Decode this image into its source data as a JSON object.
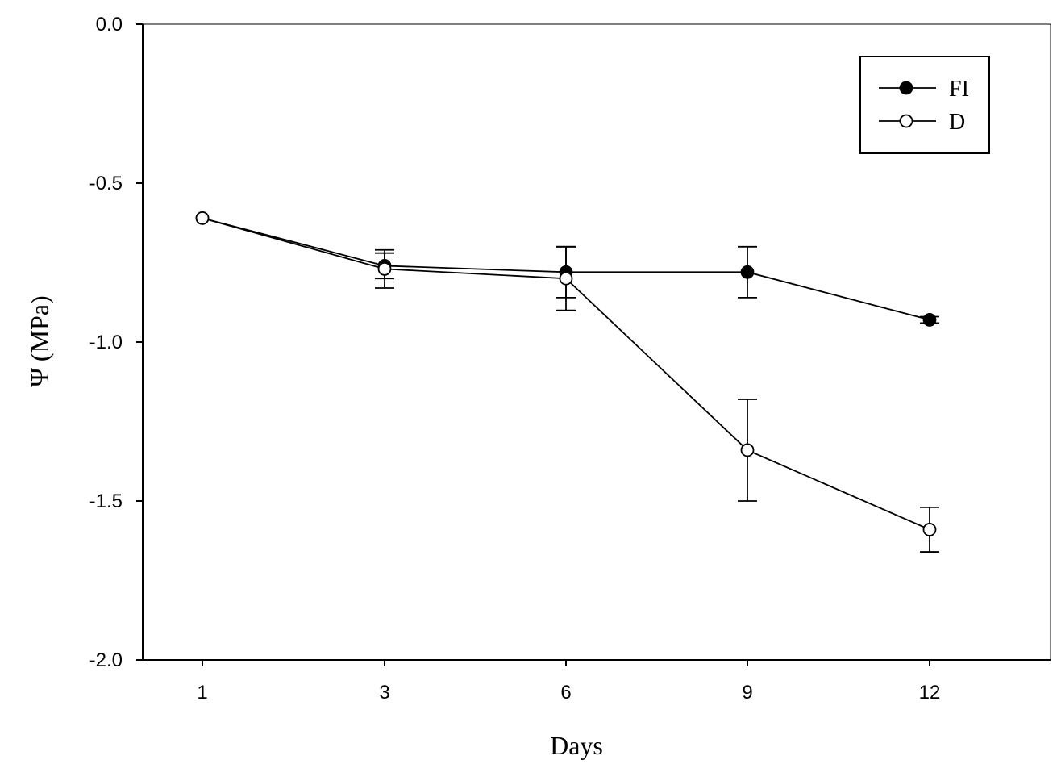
{
  "chart_data": {
    "type": "line",
    "title": "",
    "xlabel": "Days",
    "ylabel": "Ψ (MPa)",
    "categories": [
      "1",
      "3",
      "6",
      "9",
      "12"
    ],
    "ylim": [
      -2.0,
      0.0
    ],
    "y_ticks": [
      "0.0",
      "-0.5",
      "-1.0",
      "-1.5",
      "-2.0"
    ],
    "y_tick_values": [
      0.0,
      -0.5,
      -1.0,
      -1.5,
      -2.0
    ],
    "grid": false,
    "legend_position": "top-right",
    "series": [
      {
        "name": "FI",
        "marker": "filled-circle",
        "values": [
          -0.61,
          -0.76,
          -0.78,
          -0.78,
          -0.93
        ],
        "error": [
          0.0,
          0.04,
          0.08,
          0.08,
          0.01
        ]
      },
      {
        "name": "D",
        "marker": "open-circle",
        "values": [
          -0.61,
          -0.77,
          -0.8,
          -1.34,
          -1.59
        ],
        "error": [
          0.0,
          0.06,
          0.1,
          0.16,
          0.07
        ]
      }
    ]
  }
}
